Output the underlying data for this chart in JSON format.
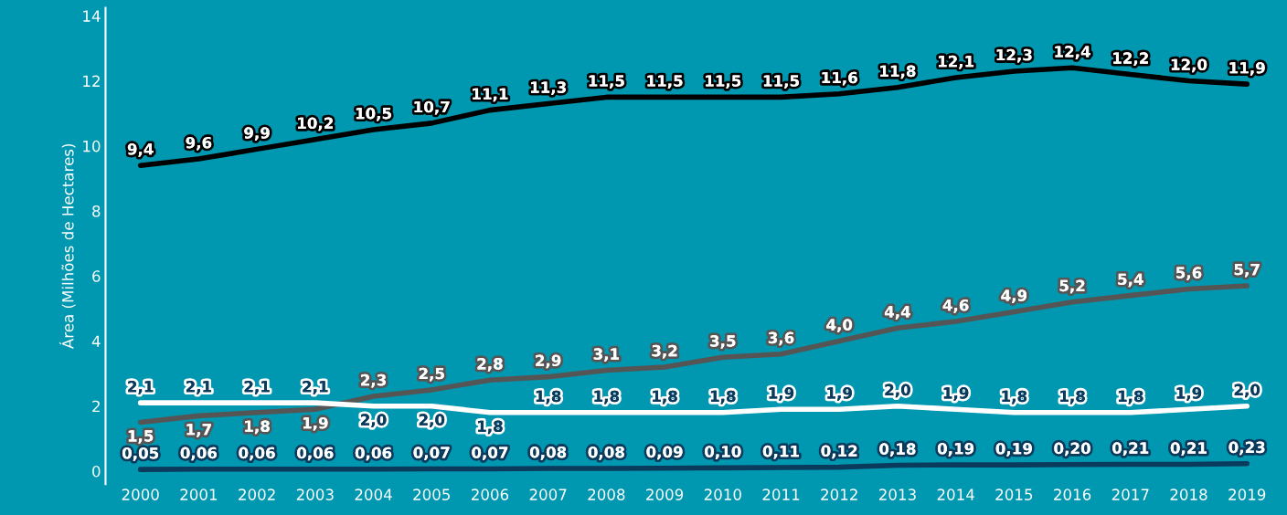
{
  "chart_data": {
    "type": "line",
    "ylabel": "Área (Milhões de Hectares)",
    "categories": [
      "2000",
      "2001",
      "2002",
      "2003",
      "2004",
      "2005",
      "2006",
      "2007",
      "2008",
      "2009",
      "2010",
      "2011",
      "2012",
      "2013",
      "2014",
      "2015",
      "2016",
      "2017",
      "2018",
      "2019"
    ],
    "ylim": [
      -0.4,
      14.25
    ],
    "yticks": [
      0,
      2,
      4,
      6,
      8,
      10,
      12,
      14
    ],
    "grid": false,
    "marker": "none",
    "line_style": "solid",
    "series": [
      {
        "color": "#000000",
        "values": [
          9.4,
          9.6,
          9.9,
          10.2,
          10.5,
          10.7,
          11.1,
          11.3,
          11.5,
          11.5,
          11.5,
          11.5,
          11.6,
          11.8,
          12.1,
          12.3,
          12.4,
          12.2,
          12.0,
          11.9
        ],
        "value_labels": [
          "9,4",
          "9,6",
          "9,9",
          "10,2",
          "10,5",
          "10,7",
          "11,1",
          "11,3",
          "11,5",
          "11,5",
          "11,5",
          "11,5",
          "11,6",
          "11,8",
          "12,1",
          "12,3",
          "12,4",
          "12,2",
          "12,0",
          "11,9"
        ]
      },
      {
        "color": "#555555",
        "values": [
          1.5,
          1.7,
          1.8,
          1.9,
          2.3,
          2.5,
          2.8,
          2.9,
          3.1,
          3.2,
          3.5,
          3.6,
          4.0,
          4.4,
          4.6,
          4.9,
          5.2,
          5.4,
          5.6,
          5.7
        ],
        "value_labels": [
          "1,5",
          "1,7",
          "1,8",
          "1,9",
          "2,3",
          "2,5",
          "2,8",
          "2,9",
          "3,1",
          "3,2",
          "3,5",
          "3,6",
          "4,0",
          "4,4",
          "4,6",
          "4,9",
          "5,2",
          "5,4",
          "5,6",
          "5,7"
        ]
      },
      {
        "color": "#ffffff",
        "values": [
          2.1,
          2.1,
          2.1,
          2.1,
          2.0,
          2.0,
          1.8,
          1.8,
          1.8,
          1.8,
          1.8,
          1.9,
          1.9,
          2.0,
          1.9,
          1.8,
          1.8,
          1.8,
          1.9,
          2.0
        ],
        "value_labels": [
          "2,1",
          "2,1",
          "2,1",
          "2,1",
          "2,0",
          "2,0",
          "1,8",
          "1,8",
          "1,8",
          "1,8",
          "1,8",
          "1,9",
          "1,9",
          "2,0",
          "1,9",
          "1,8",
          "1,8",
          "1,8",
          "1,9",
          "2,0"
        ]
      },
      {
        "color": "#0a3a5c",
        "values": [
          0.05,
          0.06,
          0.06,
          0.06,
          0.06,
          0.07,
          0.07,
          0.08,
          0.08,
          0.09,
          0.1,
          0.11,
          0.12,
          0.18,
          0.19,
          0.19,
          0.2,
          0.21,
          0.21,
          0.23
        ],
        "value_labels": [
          "0,05",
          "0,06",
          "0,06",
          "0,06",
          "0,06",
          "0,07",
          "0,07",
          "0,08",
          "0,08",
          "0,09",
          "0,10",
          "0,11",
          "0,12",
          "0,18",
          "0,19",
          "0,19",
          "0,20",
          "0,21",
          "0,21",
          "0,23"
        ]
      }
    ]
  }
}
